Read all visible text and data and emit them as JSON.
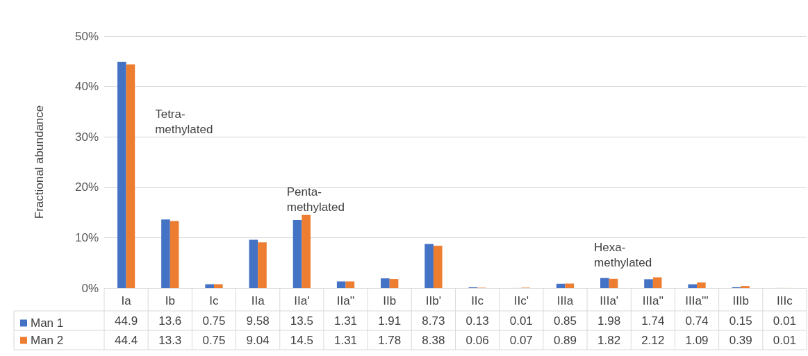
{
  "chart_data": {
    "type": "bar",
    "ylabel": "Fractional abundance",
    "categories": [
      "Ia",
      "Ib",
      "Ic",
      "IIa",
      "IIa'",
      "IIa''",
      "IIb",
      "IIb'",
      "IIc",
      "IIc'",
      "IIIa",
      "IIIa'",
      "IIIa''",
      "IIIa'''",
      "IIIb",
      "IIIc"
    ],
    "series": [
      {
        "name": "Man 1",
        "color": "#4472c4",
        "values": [
          44.9,
          13.6,
          0.75,
          9.58,
          13.5,
          1.31,
          1.91,
          8.73,
          0.13,
          0.01,
          0.85,
          1.98,
          1.74,
          0.74,
          0.15,
          0.01
        ]
      },
      {
        "name": "Man 2",
        "color": "#ed7d31",
        "values": [
          44.4,
          13.3,
          0.75,
          9.04,
          14.5,
          1.31,
          1.78,
          8.38,
          0.06,
          0.07,
          0.89,
          1.82,
          2.12,
          1.09,
          0.39,
          0.01
        ]
      }
    ],
    "ylim": [
      0,
      50
    ],
    "yticks": [
      {
        "value": 0,
        "label": "0%"
      },
      {
        "value": 10,
        "label": "10%"
      },
      {
        "value": 20,
        "label": "20%"
      },
      {
        "value": 30,
        "label": "30%"
      },
      {
        "value": 40,
        "label": "40%"
      },
      {
        "value": 50,
        "label": "50%"
      }
    ],
    "grid": "y",
    "legend": "bottom left",
    "data_labels": true,
    "annotations": [
      "Tetra-\nmethylated",
      "Penta-\nmethylated",
      "Hexa-\nmethylated"
    ]
  }
}
